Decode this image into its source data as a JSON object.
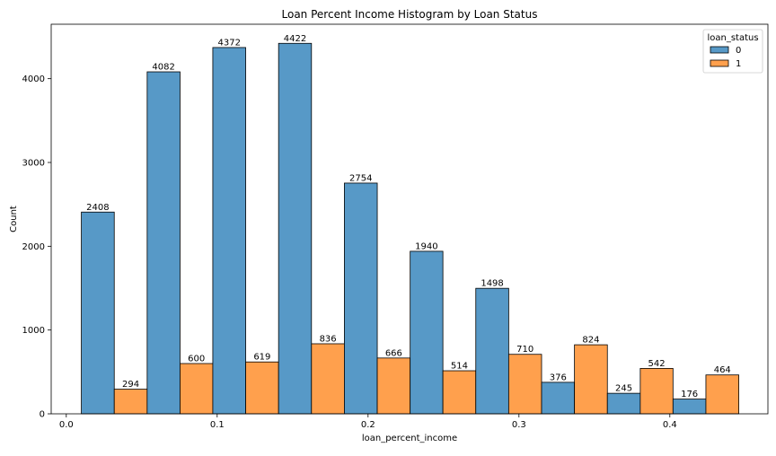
{
  "chart_data": {
    "type": "bar",
    "title": "Loan Percent Income Histogram by Loan Status",
    "xlabel": "loan_percent_income",
    "ylabel": "Count",
    "xlim": [
      -0.01,
      0.465
    ],
    "ylim": [
      0,
      4650
    ],
    "x_ticks": [
      0.0,
      0.1,
      0.2,
      0.3,
      0.4
    ],
    "x_tick_labels": [
      "0.0",
      "0.1",
      "0.2",
      "0.3",
      "0.4"
    ],
    "y_ticks": [
      0,
      1000,
      2000,
      3000,
      4000
    ],
    "y_tick_labels": [
      "0",
      "1000",
      "2000",
      "3000",
      "4000"
    ],
    "grid": false,
    "legend": {
      "title": "loan_status",
      "placement": "top-right"
    },
    "bin_edges": [
      0.01,
      0.0536,
      0.0971,
      0.1407,
      0.1843,
      0.2279,
      0.2714,
      0.315,
      0.3586,
      0.4021,
      0.4457
    ],
    "bars": [
      {
        "x0": 0.01,
        "x1": 0.0318,
        "value": 2408,
        "series": 0
      },
      {
        "x0": 0.0318,
        "x1": 0.0536,
        "value": 294,
        "series": 1
      },
      {
        "x0": 0.0536,
        "x1": 0.0754,
        "value": 4082,
        "series": 0
      },
      {
        "x0": 0.0754,
        "x1": 0.0971,
        "value": 600,
        "series": 1
      },
      {
        "x0": 0.0971,
        "x1": 0.1189,
        "value": 4372,
        "series": 0
      },
      {
        "x0": 0.1189,
        "x1": 0.1407,
        "value": 619,
        "series": 1
      },
      {
        "x0": 0.1407,
        "x1": 0.1625,
        "value": 4422,
        "series": 0
      },
      {
        "x0": 0.1625,
        "x1": 0.1843,
        "value": 836,
        "series": 1
      },
      {
        "x0": 0.1843,
        "x1": 0.2061,
        "value": 2754,
        "series": 0
      },
      {
        "x0": 0.2061,
        "x1": 0.2279,
        "value": 666,
        "series": 1
      },
      {
        "x0": 0.2279,
        "x1": 0.2496,
        "value": 1940,
        "series": 0
      },
      {
        "x0": 0.2496,
        "x1": 0.2714,
        "value": 514,
        "series": 1
      },
      {
        "x0": 0.2714,
        "x1": 0.2932,
        "value": 1498,
        "series": 0
      },
      {
        "x0": 0.2932,
        "x1": 0.315,
        "value": 710,
        "series": 1
      },
      {
        "x0": 0.315,
        "x1": 0.3368,
        "value": 376,
        "series": 0
      },
      {
        "x0": 0.3368,
        "x1": 0.3586,
        "value": 824,
        "series": 1
      },
      {
        "x0": 0.3586,
        "x1": 0.3804,
        "value": 245,
        "series": 0
      },
      {
        "x0": 0.3804,
        "x1": 0.4021,
        "value": 542,
        "series": 1
      },
      {
        "x0": 0.4021,
        "x1": 0.4239,
        "value": 176,
        "series": 0
      },
      {
        "x0": 0.4239,
        "x1": 0.4457,
        "value": 464,
        "series": 1
      }
    ],
    "series": [
      {
        "name": "0",
        "color": "#5799c7"
      },
      {
        "name": "1",
        "color": "#ffa04d"
      }
    ]
  }
}
